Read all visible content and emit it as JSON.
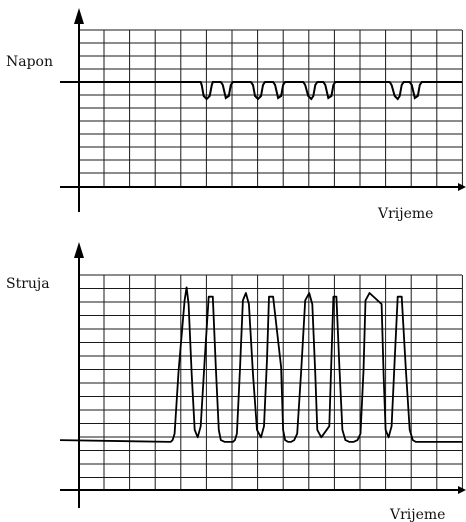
{
  "colors": {
    "grid": "#1a1a1a",
    "axis": "#000000",
    "trace": "#000000",
    "background": "#ffffff"
  },
  "chart_data": [
    {
      "type": "line",
      "ylabel": "Napon",
      "xlabel": "Vrijeme",
      "grid": true,
      "x": [
        0,
        70,
        70.5,
        71.5,
        73,
        74.5,
        75.5,
        76,
        77,
        80,
        81,
        82.5,
        84,
        85,
        86,
        87,
        95,
        96,
        97,
        98.5,
        100,
        101,
        102,
        103,
        106,
        107,
        108.5,
        110,
        111,
        112,
        113,
        121,
        122,
        123.5,
        125,
        126,
        127,
        128,
        131,
        132,
        133.5,
        135,
        136,
        137,
        138,
        164,
        165,
        166.5,
        168,
        169,
        170,
        171,
        174,
        175,
        176.5,
        178,
        179,
        180,
        181,
        200
      ],
      "y": [
        0,
        0,
        -0.15,
        -0.7,
        -0.85,
        -0.7,
        -0.15,
        0,
        0,
        0,
        -0.15,
        -0.8,
        -0.7,
        -0.15,
        0,
        0,
        0,
        -0.15,
        -0.7,
        -0.85,
        -0.7,
        -0.15,
        0,
        0,
        0,
        -0.15,
        -0.8,
        -0.7,
        -0.15,
        0,
        0,
        0,
        -0.15,
        -0.7,
        -0.85,
        -0.7,
        -0.15,
        0,
        0,
        -0.15,
        -0.8,
        -0.7,
        -0.15,
        0,
        0,
        0,
        -0.15,
        -0.7,
        -0.85,
        -0.7,
        -0.15,
        0,
        0,
        -0.15,
        -0.8,
        -0.7,
        -0.15,
        0,
        0,
        0
      ]
    },
    {
      "type": "line",
      "ylabel": "Struja",
      "xlabel": "Vrijeme",
      "grid": true,
      "x": [
        0,
        55,
        56,
        57,
        59,
        62,
        63,
        64,
        65.5,
        67,
        68.5,
        70,
        72,
        74,
        76,
        77.5,
        79,
        80,
        82,
        86,
        87,
        88,
        89.5,
        91,
        92.5,
        94,
        96,
        98,
        100,
        101.5,
        103,
        104,
        106,
        110,
        111,
        112,
        113.5,
        115,
        116.5,
        118,
        120,
        122,
        124,
        125.5,
        127,
        128,
        130,
        134,
        135,
        136,
        137.5,
        139,
        140.5,
        142,
        144,
        146,
        148,
        149.5,
        151,
        152,
        154,
        160,
        161,
        162,
        163.5,
        165,
        166.5,
        168,
        170,
        172,
        174,
        175.5,
        177,
        178,
        180,
        200
      ],
      "y": [
        1.05,
        0.95,
        1.05,
        1.4,
        4.8,
        8.6,
        9.3,
        8.4,
        4.6,
        1.6,
        1.2,
        1.8,
        5.4,
        8.8,
        8.8,
        5.0,
        1.6,
        1.05,
        0.95,
        0.95,
        1.05,
        1.4,
        4.8,
        8.6,
        9.0,
        8.4,
        4.6,
        1.6,
        1.2,
        1.8,
        5.4,
        8.8,
        8.8,
        5.0,
        1.6,
        1.05,
        0.95,
        0.95,
        1.05,
        1.4,
        4.8,
        8.6,
        9.0,
        8.4,
        4.6,
        1.6,
        1.2,
        1.8,
        5.4,
        8.8,
        8.8,
        5.0,
        1.6,
        1.05,
        0.95,
        0.95,
        1.05,
        1.4,
        4.8,
        8.6,
        9.0,
        8.4,
        4.6,
        1.6,
        1.2,
        1.8,
        5.4,
        8.8,
        8.8,
        5.0,
        1.6,
        1.05,
        0.95,
        0.95,
        0.95,
        0.95
      ]
    }
  ]
}
